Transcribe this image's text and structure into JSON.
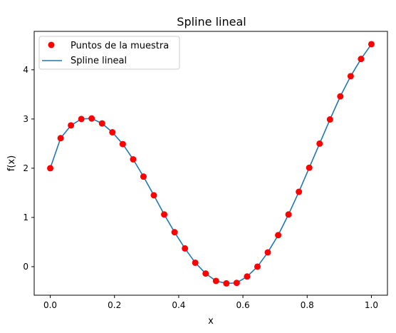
{
  "chart_data": {
    "type": "line",
    "title": "Spline lineal",
    "xlabel": "x",
    "ylabel": "f(x)",
    "xlim": [
      -0.05,
      1.05
    ],
    "ylim": [
      -0.58,
      4.78
    ],
    "xticks": [
      0.0,
      0.2,
      0.4,
      0.6,
      0.8,
      1.0
    ],
    "xtick_labels": [
      "0.0",
      "0.2",
      "0.4",
      "0.6",
      "0.8",
      "1.0"
    ],
    "yticks": [
      0,
      1,
      2,
      3,
      4
    ],
    "ytick_labels": [
      "0",
      "1",
      "2",
      "3",
      "4"
    ],
    "grid": false,
    "legend_position": "upper-left",
    "x": [
      0.0,
      0.0323,
      0.0645,
      0.0968,
      0.129,
      0.1613,
      0.1935,
      0.2258,
      0.2581,
      0.2903,
      0.3226,
      0.3548,
      0.3871,
      0.4194,
      0.4516,
      0.4839,
      0.5161,
      0.5484,
      0.5806,
      0.6129,
      0.6452,
      0.6774,
      0.7097,
      0.7419,
      0.7742,
      0.8065,
      0.8387,
      0.871,
      0.9032,
      0.9355,
      0.9677,
      1.0
    ],
    "series": [
      {
        "name": "Puntos de la muestra",
        "kind": "scatter",
        "color": "#ff0000",
        "values": [
          2.0,
          2.61,
          2.87,
          3.0,
          3.01,
          2.91,
          2.73,
          2.49,
          2.18,
          1.83,
          1.45,
          1.06,
          0.7,
          0.37,
          0.08,
          -0.14,
          -0.29,
          -0.34,
          -0.33,
          -0.2,
          0.0,
          0.29,
          0.64,
          1.06,
          1.52,
          2.01,
          2.5,
          2.99,
          3.46,
          3.87,
          4.22,
          4.52
        ]
      },
      {
        "name": "Spline lineal",
        "kind": "line",
        "color": "#1f77b4",
        "values": [
          2.0,
          2.61,
          2.87,
          3.0,
          3.01,
          2.91,
          2.73,
          2.49,
          2.18,
          1.83,
          1.45,
          1.06,
          0.7,
          0.37,
          0.08,
          -0.14,
          -0.29,
          -0.34,
          -0.33,
          -0.2,
          0.0,
          0.29,
          0.64,
          1.06,
          1.52,
          2.01,
          2.5,
          2.99,
          3.46,
          3.87,
          4.22,
          4.52
        ]
      }
    ]
  }
}
